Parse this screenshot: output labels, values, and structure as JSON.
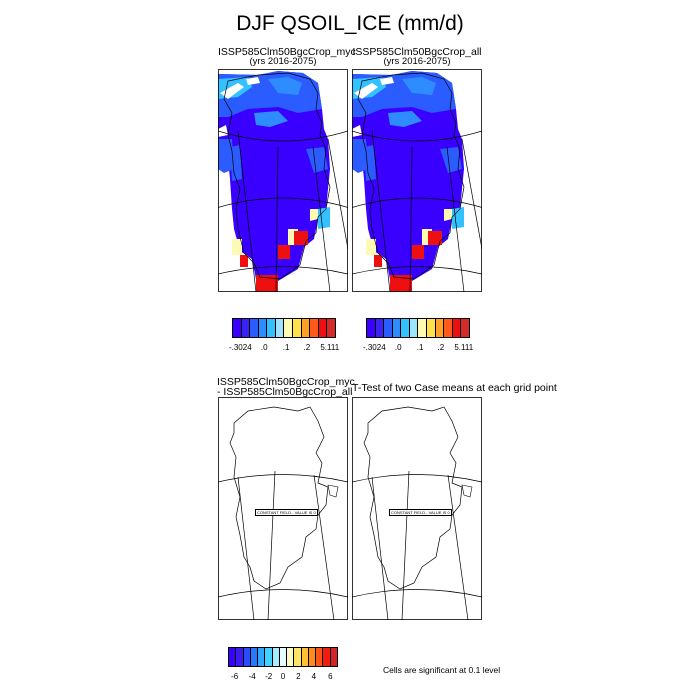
{
  "figure": {
    "title": "DJF QSOIL_ICE (mm/d)"
  },
  "panels": {
    "top_left": {
      "case": "ISSP585Clm50BgcCrop_myc",
      "years": "(yrs 2016-2075)"
    },
    "top_right": {
      "case": "ISSP585Clm50BgcCrop_all",
      "years": "(yrs 2016-2075)"
    },
    "bottom_left": {
      "line1": "ISSP585Clm50BgcCrop_myc",
      "line2": "- ISSP585Clm50BgcCrop_all",
      "constant_field_label": "CONSTANT FIELD - VALUE IS 0"
    },
    "bottom_right": {
      "title": "T-Test of two Case means at each grid point",
      "constant_field_label": "CONSTANT FIELD - VALUE IS 0"
    }
  },
  "colorbars": {
    "top": {
      "colors": [
        "#3a00ff",
        "#3a22f2",
        "#2a5cff",
        "#2f8cff",
        "#33c2ff",
        "#9fe4ff",
        "#fffab3",
        "#ffe04d",
        "#ffa126",
        "#ff5a1a",
        "#ee1010",
        "#d42a2a"
      ],
      "labels": [
        "-.3024",
        ".0",
        ".1",
        ".2",
        "5.111"
      ]
    },
    "bottom": {
      "colors": [
        "#3a00ff",
        "#3a1cf2",
        "#2a4cff",
        "#2a78ff",
        "#2fa6ff",
        "#42d2ff",
        "#a6ecff",
        "#e8fbff",
        "#fffbc4",
        "#ffe566",
        "#ffc033",
        "#ff8a1f",
        "#ff5417",
        "#f21d0d",
        "#d12626"
      ],
      "labels": [
        "-6",
        "-4",
        "-2",
        "0",
        "2",
        "4",
        "6"
      ]
    }
  },
  "note": "Cells are significant at 0.1 level",
  "colors": {
    "deep_blue": "#3a00ff",
    "mid_blue": "#2f8cff",
    "light_blue": "#33c2ff",
    "yellow": "#fffab3",
    "red": "#ee1010"
  }
}
